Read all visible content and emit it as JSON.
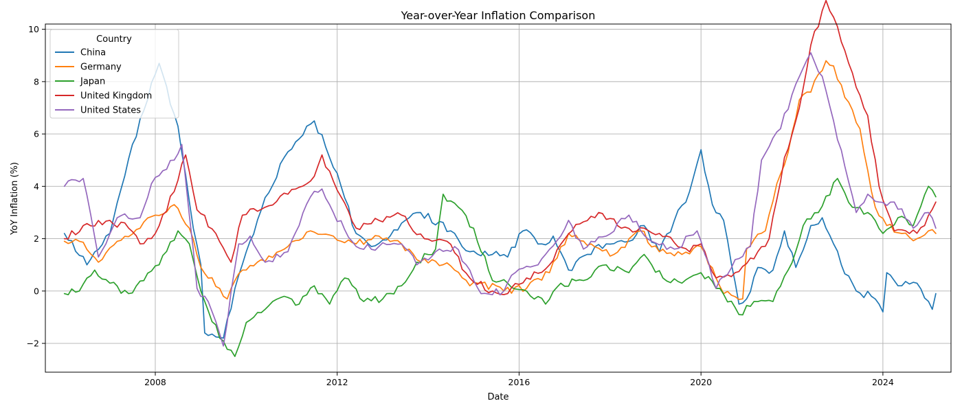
{
  "chart_data": {
    "type": "line",
    "title": "Year-over-Year Inflation Comparison",
    "xlabel": "Date",
    "ylabel": "YoY Inflation (%)",
    "grid": true,
    "legend": {
      "title": "Country",
      "placement": "top-left"
    },
    "x_axis": {
      "kind": "date",
      "range": [
        "2005-08-01",
        "2025-07-01"
      ],
      "ticks": [
        "2008",
        "2012",
        "2016",
        "2020",
        "2024"
      ]
    },
    "y_axis": {
      "range": [
        -3.1,
        10.2
      ],
      "ticks": [
        "−2",
        "0",
        "2",
        "4",
        "6",
        "8",
        "10"
      ]
    },
    "series": [
      {
        "name": "China",
        "color": "#1f77b4",
        "points": [
          [
            "2006-01",
            2.2
          ],
          [
            "2006-07",
            1.0
          ],
          [
            "2007-01",
            2.2
          ],
          [
            "2007-07",
            5.6
          ],
          [
            "2008-02",
            8.7
          ],
          [
            "2008-07",
            6.3
          ],
          [
            "2008-11",
            2.4
          ],
          [
            "2009-01",
            1.0
          ],
          [
            "2009-02",
            -1.6
          ],
          [
            "2009-07",
            -1.8
          ],
          [
            "2009-11",
            0.6
          ],
          [
            "2010-01",
            1.5
          ],
          [
            "2010-05",
            3.1
          ],
          [
            "2010-11",
            5.1
          ],
          [
            "2011-07",
            6.5
          ],
          [
            "2011-10",
            5.5
          ],
          [
            "2012-01",
            4.5
          ],
          [
            "2012-06",
            2.2
          ],
          [
            "2012-10",
            1.7
          ],
          [
            "2013-03",
            2.1
          ],
          [
            "2013-07",
            2.7
          ],
          [
            "2013-11",
            3.0
          ],
          [
            "2014-07",
            2.3
          ],
          [
            "2014-12",
            1.5
          ],
          [
            "2015-06",
            1.4
          ],
          [
            "2015-10",
            1.3
          ],
          [
            "2016-02",
            2.3
          ],
          [
            "2016-07",
            1.8
          ],
          [
            "2016-10",
            2.1
          ],
          [
            "2017-02",
            0.8
          ],
          [
            "2017-07",
            1.4
          ],
          [
            "2017-12",
            1.8
          ],
          [
            "2018-06",
            1.9
          ],
          [
            "2018-10",
            2.5
          ],
          [
            "2019-02",
            1.5
          ],
          [
            "2019-06",
            2.7
          ],
          [
            "2019-10",
            3.8
          ],
          [
            "2020-01",
            5.4
          ],
          [
            "2020-04",
            3.3
          ],
          [
            "2020-07",
            2.7
          ],
          [
            "2020-11",
            -0.5
          ],
          [
            "2021-01",
            -0.3
          ],
          [
            "2021-04",
            0.9
          ],
          [
            "2021-08",
            0.8
          ],
          [
            "2021-11",
            2.3
          ],
          [
            "2022-02",
            0.9
          ],
          [
            "2022-06",
            2.5
          ],
          [
            "2022-09",
            2.8
          ],
          [
            "2022-12",
            1.8
          ],
          [
            "2023-02",
            1.0
          ],
          [
            "2023-06",
            0.0
          ],
          [
            "2023-10",
            -0.2
          ],
          [
            "2024-01",
            -0.8
          ],
          [
            "2024-02",
            0.7
          ],
          [
            "2024-06",
            0.2
          ],
          [
            "2024-10",
            0.3
          ],
          [
            "2025-02",
            -0.7
          ],
          [
            "2025-03",
            -0.1
          ]
        ]
      },
      {
        "name": "Germany",
        "color": "#ff7f0e",
        "points": [
          [
            "2006-01",
            1.9
          ],
          [
            "2006-05",
            1.9
          ],
          [
            "2006-10",
            1.1
          ],
          [
            "2007-03",
            1.9
          ],
          [
            "2007-09",
            2.4
          ],
          [
            "2008-01",
            2.9
          ],
          [
            "2008-06",
            3.3
          ],
          [
            "2008-10",
            2.4
          ],
          [
            "2009-01",
            0.9
          ],
          [
            "2009-06",
            0.1
          ],
          [
            "2009-08",
            -0.3
          ],
          [
            "2009-12",
            0.8
          ],
          [
            "2010-05",
            1.2
          ],
          [
            "2010-12",
            1.7
          ],
          [
            "2011-06",
            2.3
          ],
          [
            "2011-12",
            2.1
          ],
          [
            "2012-06",
            1.8
          ],
          [
            "2012-12",
            2.1
          ],
          [
            "2013-06",
            1.8
          ],
          [
            "2013-10",
            1.2
          ],
          [
            "2014-02",
            1.2
          ],
          [
            "2014-08",
            0.8
          ],
          [
            "2014-12",
            0.2
          ],
          [
            "2015-03",
            0.3
          ],
          [
            "2015-09",
            0.0
          ],
          [
            "2016-03",
            0.1
          ],
          [
            "2016-09",
            0.7
          ],
          [
            "2017-02",
            2.2
          ],
          [
            "2017-08",
            1.8
          ],
          [
            "2018-02",
            1.4
          ],
          [
            "2018-09",
            2.3
          ],
          [
            "2019-02",
            1.5
          ],
          [
            "2019-08",
            1.4
          ],
          [
            "2020-01",
            1.7
          ],
          [
            "2020-07",
            -0.1
          ],
          [
            "2020-12",
            -0.3
          ],
          [
            "2021-01",
            1.6
          ],
          [
            "2021-06",
            2.3
          ],
          [
            "2021-09",
            4.1
          ],
          [
            "2021-12",
            5.3
          ],
          [
            "2022-03",
            7.3
          ],
          [
            "2022-06",
            7.6
          ],
          [
            "2022-10",
            8.8
          ],
          [
            "2022-12",
            8.6
          ],
          [
            "2023-03",
            7.4
          ],
          [
            "2023-07",
            6.2
          ],
          [
            "2023-11",
            3.2
          ],
          [
            "2024-02",
            2.5
          ],
          [
            "2024-06",
            2.2
          ],
          [
            "2024-10",
            2.0
          ],
          [
            "2025-01",
            2.3
          ],
          [
            "2025-03",
            2.2
          ]
        ]
      },
      {
        "name": "Japan",
        "color": "#2ca02c",
        "points": [
          [
            "2006-01",
            -0.1
          ],
          [
            "2006-05",
            0.0
          ],
          [
            "2006-09",
            0.8
          ],
          [
            "2007-01",
            0.3
          ],
          [
            "2007-06",
            -0.1
          ],
          [
            "2007-10",
            0.4
          ],
          [
            "2008-02",
            1.0
          ],
          [
            "2008-07",
            2.3
          ],
          [
            "2008-10",
            1.8
          ],
          [
            "2009-01",
            0.0
          ],
          [
            "2009-06",
            -1.8
          ],
          [
            "2009-10",
            -2.5
          ],
          [
            "2010-01",
            -1.2
          ],
          [
            "2010-06",
            -0.7
          ],
          [
            "2010-11",
            -0.2
          ],
          [
            "2011-03",
            -0.5
          ],
          [
            "2011-07",
            0.2
          ],
          [
            "2011-11",
            -0.5
          ],
          [
            "2012-03",
            0.5
          ],
          [
            "2012-08",
            -0.4
          ],
          [
            "2013-01",
            -0.3
          ],
          [
            "2013-06",
            0.2
          ],
          [
            "2013-10",
            1.1
          ],
          [
            "2014-03",
            1.6
          ],
          [
            "2014-05",
            3.7
          ],
          [
            "2014-09",
            3.2
          ],
          [
            "2015-01",
            2.4
          ],
          [
            "2015-06",
            0.4
          ],
          [
            "2015-10",
            0.3
          ],
          [
            "2016-03",
            0.0
          ],
          [
            "2016-08",
            -0.5
          ],
          [
            "2016-12",
            0.3
          ],
          [
            "2017-06",
            0.4
          ],
          [
            "2017-12",
            1.0
          ],
          [
            "2018-06",
            0.7
          ],
          [
            "2018-10",
            1.4
          ],
          [
            "2019-03",
            0.5
          ],
          [
            "2019-08",
            0.3
          ],
          [
            "2020-01",
            0.7
          ],
          [
            "2020-06",
            0.1
          ],
          [
            "2020-11",
            -0.9
          ],
          [
            "2021-03",
            -0.4
          ],
          [
            "2021-08",
            -0.4
          ],
          [
            "2021-12",
            0.8
          ],
          [
            "2022-04",
            2.5
          ],
          [
            "2022-08",
            3.0
          ],
          [
            "2023-01",
            4.3
          ],
          [
            "2023-05",
            3.2
          ],
          [
            "2023-09",
            3.0
          ],
          [
            "2024-01",
            2.2
          ],
          [
            "2024-05",
            2.8
          ],
          [
            "2024-09",
            2.5
          ],
          [
            "2025-01",
            4.0
          ],
          [
            "2025-03",
            3.6
          ]
        ]
      },
      {
        "name": "United Kingdom",
        "color": "#d62728",
        "points": [
          [
            "2006-01",
            2.0
          ],
          [
            "2006-06",
            2.5
          ],
          [
            "2007-01",
            2.7
          ],
          [
            "2007-06",
            2.4
          ],
          [
            "2007-09",
            1.8
          ],
          [
            "2008-01",
            2.2
          ],
          [
            "2008-06",
            3.8
          ],
          [
            "2008-09",
            5.2
          ],
          [
            "2008-12",
            3.1
          ],
          [
            "2009-05",
            2.2
          ],
          [
            "2009-09",
            1.1
          ],
          [
            "2009-12",
            2.9
          ],
          [
            "2010-06",
            3.2
          ],
          [
            "2010-12",
            3.7
          ],
          [
            "2011-06",
            4.2
          ],
          [
            "2011-09",
            5.2
          ],
          [
            "2011-12",
            4.2
          ],
          [
            "2012-06",
            2.4
          ],
          [
            "2012-12",
            2.7
          ],
          [
            "2013-06",
            2.9
          ],
          [
            "2013-12",
            2.0
          ],
          [
            "2014-06",
            1.9
          ],
          [
            "2014-12",
            0.5
          ],
          [
            "2015-06",
            0.0
          ],
          [
            "2015-10",
            -0.1
          ],
          [
            "2016-03",
            0.5
          ],
          [
            "2016-09",
            1.0
          ],
          [
            "2017-03",
            2.3
          ],
          [
            "2017-10",
            3.0
          ],
          [
            "2018-04",
            2.4
          ],
          [
            "2018-10",
            2.4
          ],
          [
            "2019-04",
            2.1
          ],
          [
            "2019-10",
            1.5
          ],
          [
            "2020-01",
            1.8
          ],
          [
            "2020-05",
            0.5
          ],
          [
            "2020-10",
            0.7
          ],
          [
            "2021-04",
            1.5
          ],
          [
            "2021-07",
            2.0
          ],
          [
            "2021-11",
            5.1
          ],
          [
            "2022-03",
            7.0
          ],
          [
            "2022-06",
            9.4
          ],
          [
            "2022-10",
            11.1
          ],
          [
            "2023-01",
            10.1
          ],
          [
            "2023-04",
            8.7
          ],
          [
            "2023-09",
            6.7
          ],
          [
            "2023-12",
            4.0
          ],
          [
            "2024-04",
            2.3
          ],
          [
            "2024-08",
            2.2
          ],
          [
            "2024-12",
            2.5
          ],
          [
            "2025-03",
            3.4
          ]
        ]
      },
      {
        "name": "United States",
        "color": "#9467bd",
        "points": [
          [
            "2006-01",
            4.0
          ],
          [
            "2006-06",
            4.3
          ],
          [
            "2006-10",
            1.3
          ],
          [
            "2007-03",
            2.8
          ],
          [
            "2007-09",
            2.8
          ],
          [
            "2007-12",
            4.1
          ],
          [
            "2008-06",
            5.0
          ],
          [
            "2008-08",
            5.6
          ],
          [
            "2008-12",
            0.1
          ],
          [
            "2009-03",
            -0.4
          ],
          [
            "2009-07",
            -2.1
          ],
          [
            "2009-11",
            1.8
          ],
          [
            "2010-02",
            2.1
          ],
          [
            "2010-06",
            1.1
          ],
          [
            "2010-12",
            1.5
          ],
          [
            "2011-06",
            3.6
          ],
          [
            "2011-09",
            3.9
          ],
          [
            "2011-12",
            3.0
          ],
          [
            "2012-06",
            1.7
          ],
          [
            "2012-12",
            1.7
          ],
          [
            "2013-06",
            1.8
          ],
          [
            "2013-10",
            1.0
          ],
          [
            "2014-03",
            1.5
          ],
          [
            "2014-08",
            1.7
          ],
          [
            "2014-12",
            0.8
          ],
          [
            "2015-03",
            -0.1
          ],
          [
            "2015-09",
            0.0
          ],
          [
            "2015-12",
            0.7
          ],
          [
            "2016-06",
            1.0
          ],
          [
            "2016-12",
            2.1
          ],
          [
            "2017-02",
            2.7
          ],
          [
            "2017-06",
            1.6
          ],
          [
            "2017-12",
            2.1
          ],
          [
            "2018-06",
            2.9
          ],
          [
            "2018-12",
            1.9
          ],
          [
            "2019-06",
            1.6
          ],
          [
            "2019-12",
            2.3
          ],
          [
            "2020-05",
            0.1
          ],
          [
            "2020-10",
            1.2
          ],
          [
            "2021-02",
            1.7
          ],
          [
            "2021-05",
            5.0
          ],
          [
            "2021-10",
            6.2
          ],
          [
            "2022-01",
            7.5
          ],
          [
            "2022-06",
            9.1
          ],
          [
            "2022-09",
            8.2
          ],
          [
            "2022-12",
            6.5
          ],
          [
            "2023-06",
            3.0
          ],
          [
            "2023-09",
            3.7
          ],
          [
            "2023-12",
            3.4
          ],
          [
            "2024-04",
            3.4
          ],
          [
            "2024-09",
            2.4
          ],
          [
            "2025-01",
            3.0
          ],
          [
            "2025-03",
            2.4
          ]
        ]
      }
    ]
  }
}
